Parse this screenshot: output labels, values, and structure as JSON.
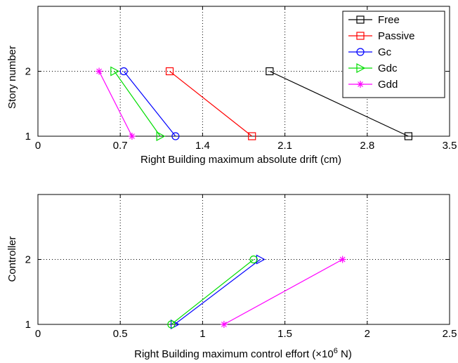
{
  "chart_data": [
    {
      "type": "line",
      "xlabel": "Right Building  maximum absolute drift  (cm)",
      "ylabel": "Story number",
      "xlim": [
        0,
        3.5
      ],
      "ylim": [
        1,
        3
      ],
      "xticks": [
        0,
        0.7,
        1.4,
        2.1,
        2.8,
        3.5
      ],
      "xtick_labels": [
        "0",
        "0.7",
        "1.4",
        "2.1",
        "2.8",
        "3.5"
      ],
      "yticks": [
        1,
        2
      ],
      "ytick_labels": [
        "1",
        "2"
      ],
      "grid": true,
      "legend_position": "top-right",
      "series": [
        {
          "name": "Free",
          "color": "#000000",
          "marker": "square",
          "points": [
            [
              3.15,
              1
            ],
            [
              1.97,
              2
            ]
          ]
        },
        {
          "name": "Passive",
          "color": "#ff0000",
          "marker": "square",
          "points": [
            [
              1.82,
              1
            ],
            [
              1.12,
              2
            ]
          ]
        },
        {
          "name": "Gc",
          "color": "#0000ff",
          "marker": "circle",
          "points": [
            [
              1.17,
              1
            ],
            [
              0.73,
              2
            ]
          ]
        },
        {
          "name": "Gdc",
          "color": "#00dd00",
          "marker": "triangle-right",
          "points": [
            [
              1.04,
              1
            ],
            [
              0.65,
              2
            ]
          ]
        },
        {
          "name": "Gdd",
          "color": "#ff00ff",
          "marker": "star",
          "points": [
            [
              0.8,
              1
            ],
            [
              0.52,
              2
            ]
          ]
        }
      ]
    },
    {
      "type": "line",
      "xlabel_prefix": "Right Building maximum control effort  (",
      "xlabel_times": "×10",
      "xlabel_exp": "6",
      "xlabel_suffix": " N)",
      "ylabel": "Controller",
      "xlim": [
        0,
        2.5
      ],
      "ylim": [
        1,
        3
      ],
      "xticks": [
        0,
        0.5,
        1,
        1.5,
        2,
        2.5
      ],
      "xtick_labels": [
        "0",
        "0.5",
        "1",
        "1.5",
        "2",
        "2.5"
      ],
      "yticks": [
        1,
        2
      ],
      "ytick_labels": [
        "1",
        "2"
      ],
      "grid": true,
      "series": [
        {
          "name": "Gc",
          "color": "#0000ff",
          "marker": "triangle-right",
          "points": [
            [
              0.83,
              1
            ],
            [
              1.35,
              2
            ]
          ]
        },
        {
          "name": "Gdc",
          "color": "#00dd00",
          "marker": "circle",
          "points": [
            [
              0.81,
              1
            ],
            [
              1.31,
              2
            ]
          ]
        },
        {
          "name": "Gdd",
          "color": "#ff00ff",
          "marker": "star",
          "points": [
            [
              1.13,
              1
            ],
            [
              1.85,
              2
            ]
          ]
        }
      ]
    }
  ]
}
